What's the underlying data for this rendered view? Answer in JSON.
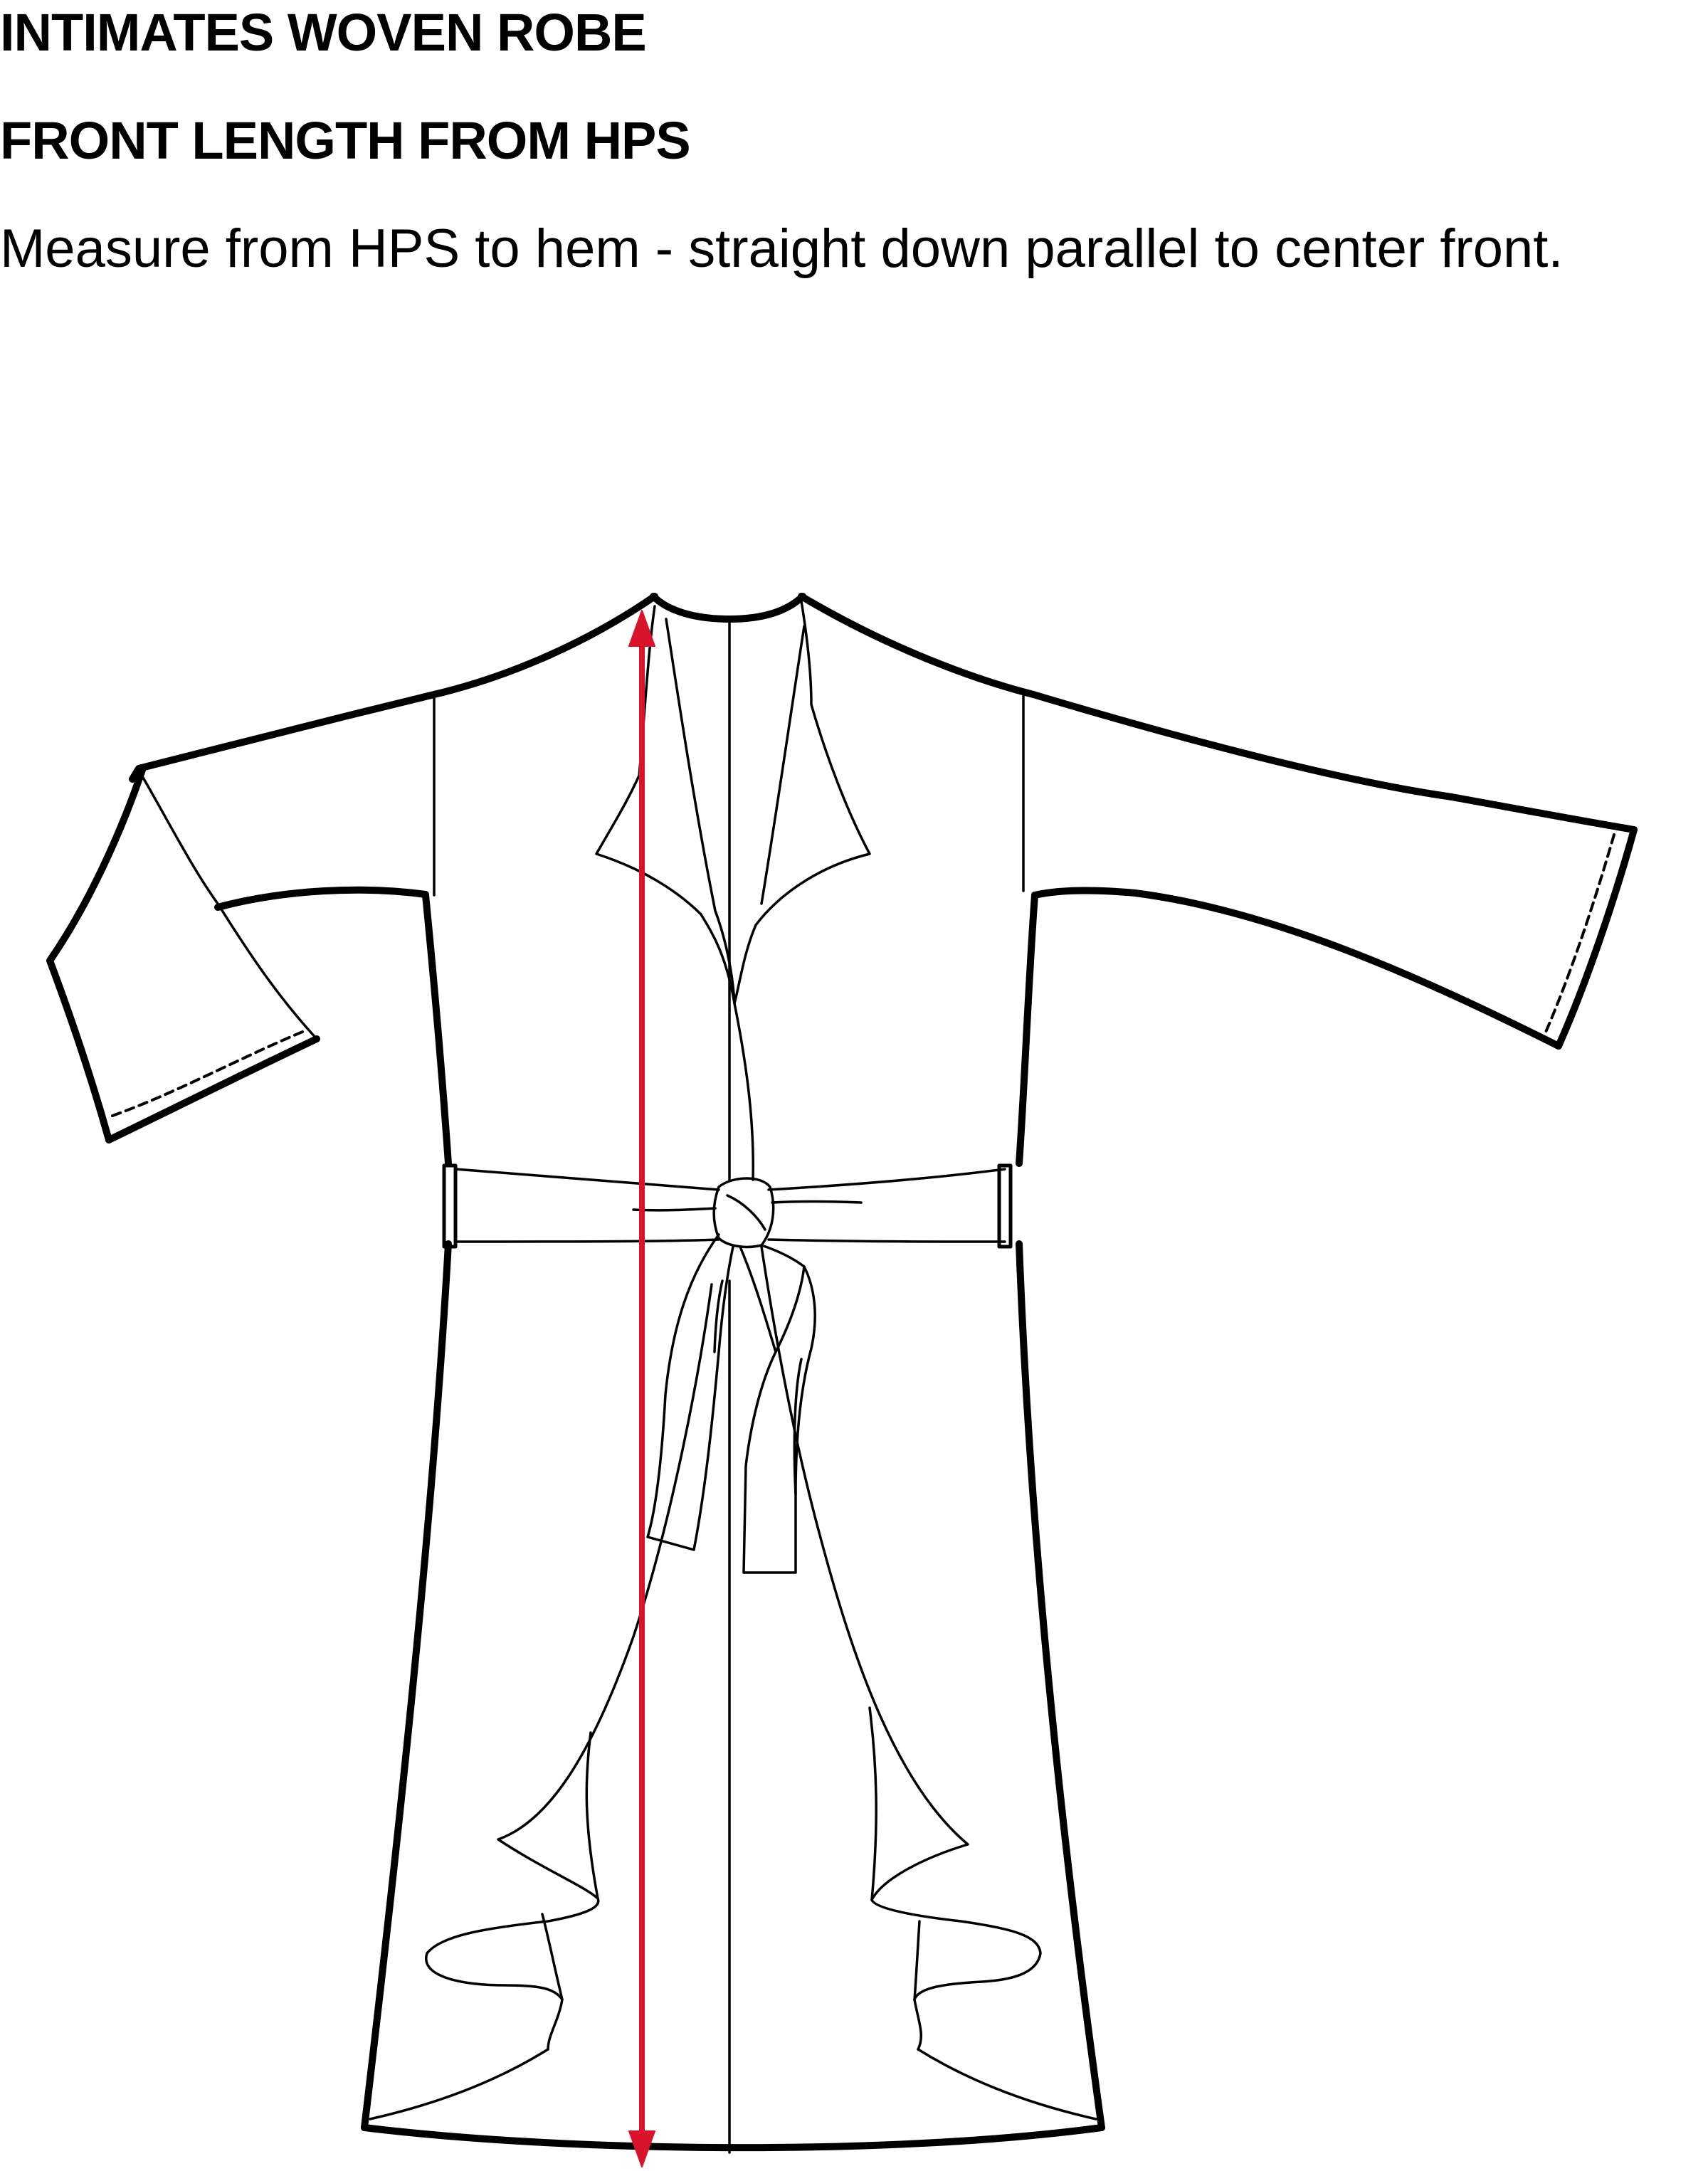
{
  "header": {
    "title": "INTIMATES WOVEN ROBE",
    "subtitle": "FRONT LENGTH FROM HPS",
    "instruction": "Measure from HPS to hem - straight down parallel to center front."
  },
  "colors": {
    "measurement_arrow": "#d7142b",
    "outline": "#000000",
    "background": "#ffffff"
  },
  "diagram": {
    "garment": "robe-flat-sketch",
    "measurement": "front-length-from-hps-arrow"
  }
}
